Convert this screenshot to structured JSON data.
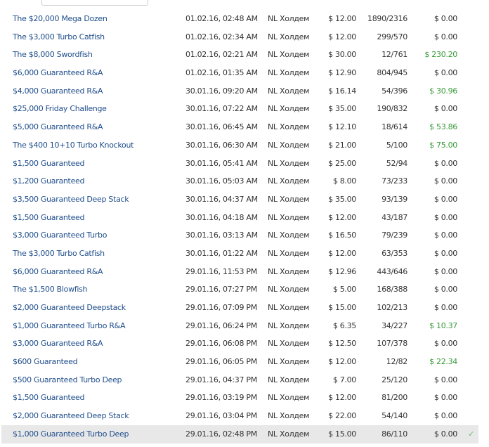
{
  "rows": [
    {
      "name": "The $20,000 Mega Dozen",
      "date": "01.02.16, 02:48 AM",
      "game": "NL Холдем",
      "buyin": "$ 12.00",
      "players": "1890/2316",
      "win": "$ 0.00",
      "won": false
    },
    {
      "name": "The $3,000 Turbo Catfish",
      "date": "01.02.16, 02:34 AM",
      "game": "NL Холдем",
      "buyin": "$ 12.00",
      "players": "299/570",
      "win": "$ 0.00",
      "won": false
    },
    {
      "name": "The $8,000 Swordfish",
      "date": "01.02.16, 02:21 AM",
      "game": "NL Холдем",
      "buyin": "$ 30.00",
      "players": "12/761",
      "win": "$ 230.20",
      "won": true
    },
    {
      "name": "$6,000 Guaranteed R&A",
      "date": "01.02.16, 01:35 AM",
      "game": "NL Холдем",
      "buyin": "$ 12.90",
      "players": "804/945",
      "win": "$ 0.00",
      "won": false
    },
    {
      "name": "$4,000 Guaranteed R&A",
      "date": "30.01.16, 09:20 AM",
      "game": "NL Холдем",
      "buyin": "$ 16.14",
      "players": "54/396",
      "win": "$ 30.96",
      "won": true
    },
    {
      "name": "$25,000 Friday Challenge",
      "date": "30.01.16, 07:22 AM",
      "game": "NL Холдем",
      "buyin": "$ 35.00",
      "players": "190/832",
      "win": "$ 0.00",
      "won": false
    },
    {
      "name": "$5,000 Guaranteed R&A",
      "date": "30.01.16, 06:45 AM",
      "game": "NL Холдем",
      "buyin": "$ 12.10",
      "players": "18/614",
      "win": "$ 53.86",
      "won": true
    },
    {
      "name": "The $400 10+10 Turbo Knockout",
      "date": "30.01.16, 06:30 AM",
      "game": "NL Холдем",
      "buyin": "$ 21.00",
      "players": "5/100",
      "win": "$ 75.00",
      "won": true
    },
    {
      "name": "$1,500 Guaranteed",
      "date": "30.01.16, 05:41 AM",
      "game": "NL Холдем",
      "buyin": "$ 25.00",
      "players": "52/94",
      "win": "$ 0.00",
      "won": false
    },
    {
      "name": "$1,200 Guaranteed",
      "date": "30.01.16, 05:03 AM",
      "game": "NL Холдем",
      "buyin": "$ 8.00",
      "players": "73/233",
      "win": "$ 0.00",
      "won": false
    },
    {
      "name": "$3,500 Guaranteed Deep Stack",
      "date": "30.01.16, 04:37 AM",
      "game": "NL Холдем",
      "buyin": "$ 35.00",
      "players": "93/139",
      "win": "$ 0.00",
      "won": false
    },
    {
      "name": "$1,500 Guaranteed",
      "date": "30.01.16, 04:18 AM",
      "game": "NL Холдем",
      "buyin": "$ 12.00",
      "players": "43/187",
      "win": "$ 0.00",
      "won": false
    },
    {
      "name": "$3,000 Guaranteed Turbo",
      "date": "30.01.16, 03:13 AM",
      "game": "NL Холдем",
      "buyin": "$ 16.50",
      "players": "79/239",
      "win": "$ 0.00",
      "won": false
    },
    {
      "name": "The $3,000 Turbo Catfish",
      "date": "30.01.16, 01:22 AM",
      "game": "NL Холдем",
      "buyin": "$ 12.00",
      "players": "63/353",
      "win": "$ 0.00",
      "won": false
    },
    {
      "name": "$6,000 Guaranteed R&A",
      "date": "29.01.16, 11:53 PM",
      "game": "NL Холдем",
      "buyin": "$ 12.96",
      "players": "443/646",
      "win": "$ 0.00",
      "won": false
    },
    {
      "name": "The $1,500 Blowfish",
      "date": "29.01.16, 07:27 PM",
      "game": "NL Холдем",
      "buyin": "$ 5.00",
      "players": "168/388",
      "win": "$ 0.00",
      "won": false
    },
    {
      "name": "$2,000 Guaranteed Deepstack",
      "date": "29.01.16, 07:09 PM",
      "game": "NL Холдем",
      "buyin": "$ 15.00",
      "players": "102/213",
      "win": "$ 0.00",
      "won": false
    },
    {
      "name": "$1,000 Guaranteed Turbo R&A",
      "date": "29.01.16, 06:24 PM",
      "game": "NL Холдем",
      "buyin": "$ 6.35",
      "players": "34/227",
      "win": "$ 10.37",
      "won": true
    },
    {
      "name": "$3,000 Guaranteed R&A",
      "date": "29.01.16, 06:08 PM",
      "game": "NL Холдем",
      "buyin": "$ 12.50",
      "players": "107/378",
      "win": "$ 0.00",
      "won": false
    },
    {
      "name": "$600 Guaranteed",
      "date": "29.01.16, 06:05 PM",
      "game": "NL Холдем",
      "buyin": "$ 12.00",
      "players": "12/82",
      "win": "$ 22.34",
      "won": true
    },
    {
      "name": "$500 Guaranteed Turbo Deep",
      "date": "29.01.16, 04:37 PM",
      "game": "NL Холдем",
      "buyin": "$ 7.00",
      "players": "25/120",
      "win": "$ 0.00",
      "won": false
    },
    {
      "name": "$1,500 Guaranteed",
      "date": "29.01.16, 03:19 PM",
      "game": "NL Холдем",
      "buyin": "$ 12.00",
      "players": "81/200",
      "win": "$ 0.00",
      "won": false
    },
    {
      "name": "$2,000 Guaranteed Deep Stack",
      "date": "29.01.16, 03:04 PM",
      "game": "NL Холдем",
      "buyin": "$ 22.00",
      "players": "54/140",
      "win": "$ 0.00",
      "won": false
    },
    {
      "name": "$1,000 Guaranteed Turbo Deep",
      "date": "29.01.16, 02:48 PM",
      "game": "NL Холдем",
      "buyin": "$ 15.00",
      "players": "86/110",
      "win": "$ 0.00",
      "won": false,
      "selected": true
    }
  ],
  "check_glyph": "✓"
}
